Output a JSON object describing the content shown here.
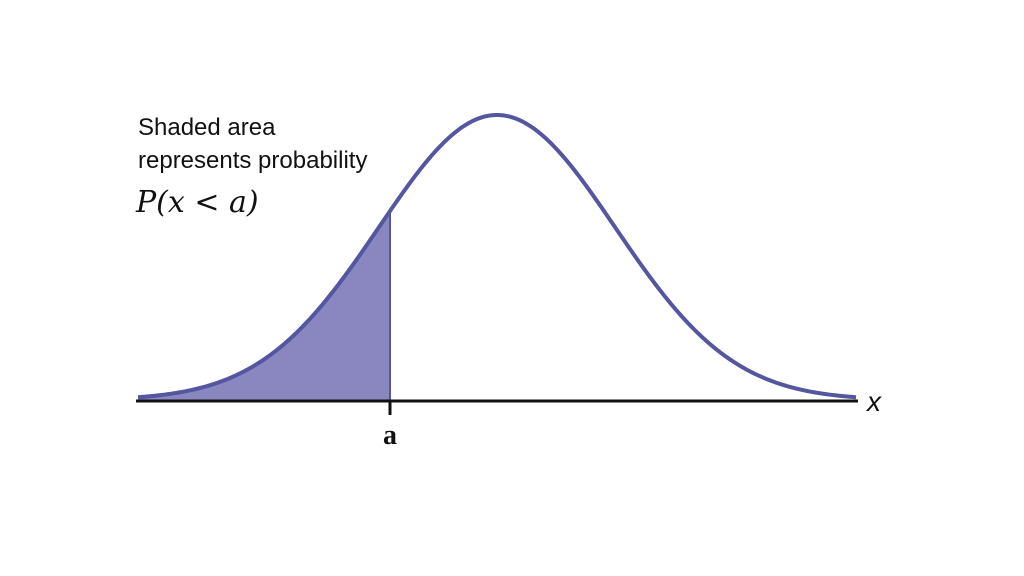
{
  "annotation": {
    "lines": [
      "Shaded area",
      "represents probability"
    ],
    "formula": "P(x < a)"
  },
  "axis": {
    "label": "x",
    "tick_label": "a"
  }
}
